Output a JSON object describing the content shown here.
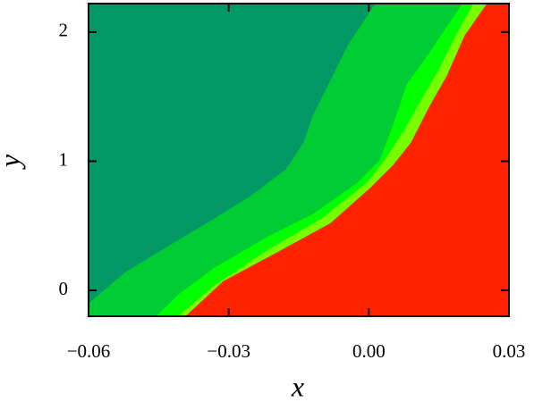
{
  "chart_data": {
    "type": "contour",
    "x_label": "x",
    "y_label": "y",
    "color": "#009966",
    "xlim": [
      -0.06,
      0.03
    ],
    "ylim": [
      -0.2,
      2.22
    ],
    "xticks": [
      {
        "value": -0.06,
        "label": "−0.06"
      },
      {
        "value": -0.03,
        "label": "−0.03"
      },
      {
        "value": 0,
        "label": "0.00"
      },
      0.03
    ],
    "yticks": [
      0,
      1,
      2
    ],
    "series": [
      {
        "color": "#00cc33",
        "x": [
          -0.06,
          -0.0521,
          -0.0426,
          -0.033,
          -0.0253,
          -0.0177,
          -0.0139,
          -0.0119,
          -0.0081,
          -0.0043,
          0.0015
        ],
        "y": [
          -0.104,
          0.138,
          0.346,
          0.554,
          0.727,
          0.934,
          1.142,
          1.349,
          1.626,
          1.903,
          2.22
        ]
      },
      {
        "color": "#00ff00",
        "x": [
          -0.0454,
          -0.0407,
          -0.033,
          -0.0215,
          -0.0119,
          -0.0024,
          0.0024,
          0.0053,
          0.0082,
          0.013,
          0.0168,
          0.0202
        ],
        "y": [
          -0.2,
          -0.035,
          0.173,
          0.415,
          0.588,
          0.83,
          1.003,
          1.28,
          1.592,
          1.834,
          2.042,
          2.22
        ]
      },
      {
        "color": "#77ff00",
        "x": [
          -0.0407,
          -0.033,
          -0.0215,
          -0.01,
          -0.0004,
          0.0034,
          0.0072,
          0.011,
          0.0149,
          0.0187,
          0.0225
        ],
        "y": [
          -0.2,
          0.035,
          0.311,
          0.554,
          0.83,
          1.003,
          1.211,
          1.453,
          1.696,
          1.972,
          2.22
        ]
      },
      {
        "color": "#ff2200",
        "x": [
          -0.0391,
          -0.0311,
          -0.0196,
          -0.0081,
          0.0005,
          0.0053,
          0.0091,
          0.013,
          0.0168,
          0.0206,
          0.0254
        ],
        "y": [
          -0.2,
          0.069,
          0.291,
          0.519,
          0.796,
          0.969,
          1.142,
          1.419,
          1.661,
          1.972,
          2.22
        ]
      }
    ]
  }
}
